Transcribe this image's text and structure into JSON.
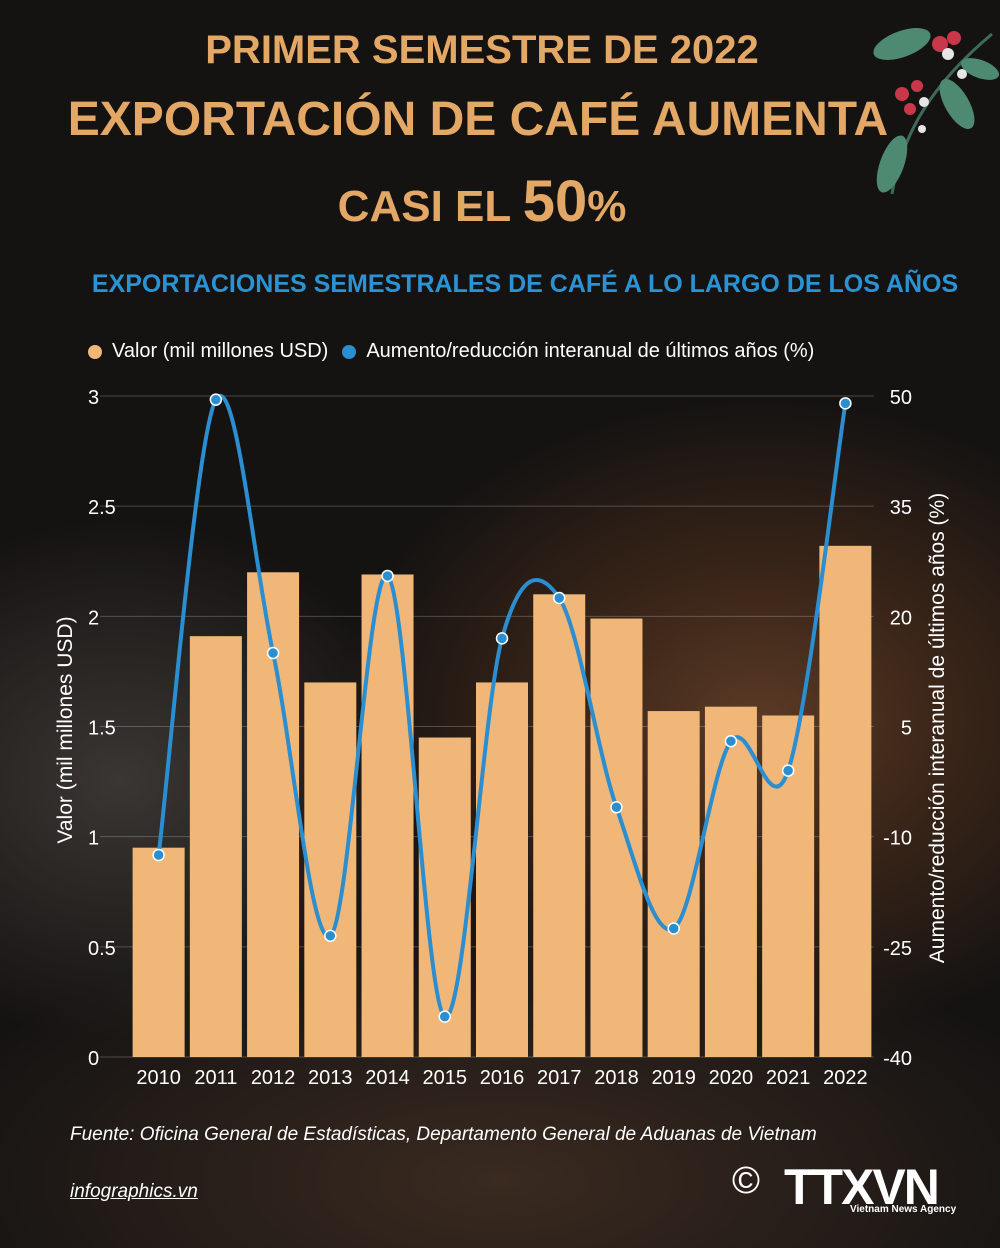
{
  "header": {
    "line1": "PRIMER SEMESTRE DE 2022",
    "line2": "EXPORTACIÓN DE CAFÉ AUMENTA",
    "line3_prefix": "CASI EL ",
    "line3_big": "50",
    "line3_suffix": "%"
  },
  "chart_data": {
    "type": "bar",
    "title": "EXPORTACIONES SEMESTRALES DE CAFÉ A LO LARGO DE LOS AÑOS",
    "categories": [
      "2010",
      "2011",
      "2012",
      "2013",
      "2014",
      "2015",
      "2016",
      "2017",
      "2018",
      "2019",
      "2020",
      "2021",
      "2022"
    ],
    "series": [
      {
        "name": "Valor (mil millones USD)",
        "type": "bar",
        "axis": "left",
        "color": "#f0b778",
        "values": [
          0.95,
          1.91,
          2.2,
          1.7,
          2.19,
          1.45,
          1.7,
          2.1,
          1.99,
          1.57,
          1.59,
          1.55,
          2.32
        ]
      },
      {
        "name": "Aumento/reducción interanual de últimos años (%)",
        "type": "line",
        "axis": "right",
        "color": "#2b8ed1",
        "values": [
          -12.5,
          49.5,
          15,
          -23.5,
          25.5,
          -34.5,
          17,
          22.5,
          -6,
          -22.5,
          3,
          -1,
          49
        ]
      }
    ],
    "ylabel": "Valor (mil millones USD)",
    "y2label": "Aumento/reducción interanual de últimos años (%)",
    "ylim": [
      0,
      3
    ],
    "y2lim": [
      -40,
      50
    ],
    "yticks": [
      "0",
      "0.5",
      "1",
      "1.5",
      "2",
      "2.5",
      "3"
    ],
    "y2ticks": [
      "-40",
      "-25",
      "-10",
      "5",
      "20",
      "35",
      "50"
    ],
    "grid": true,
    "legend_position": "top-left"
  },
  "footer": {
    "source": "Fuente: Oficina General de Estadísticas, Departamento General de Aduanas de Vietnam",
    "site": "infographics.vn",
    "copyright": "©",
    "logo_text": "TTXVN",
    "agency": "Vietnam News Agency"
  }
}
